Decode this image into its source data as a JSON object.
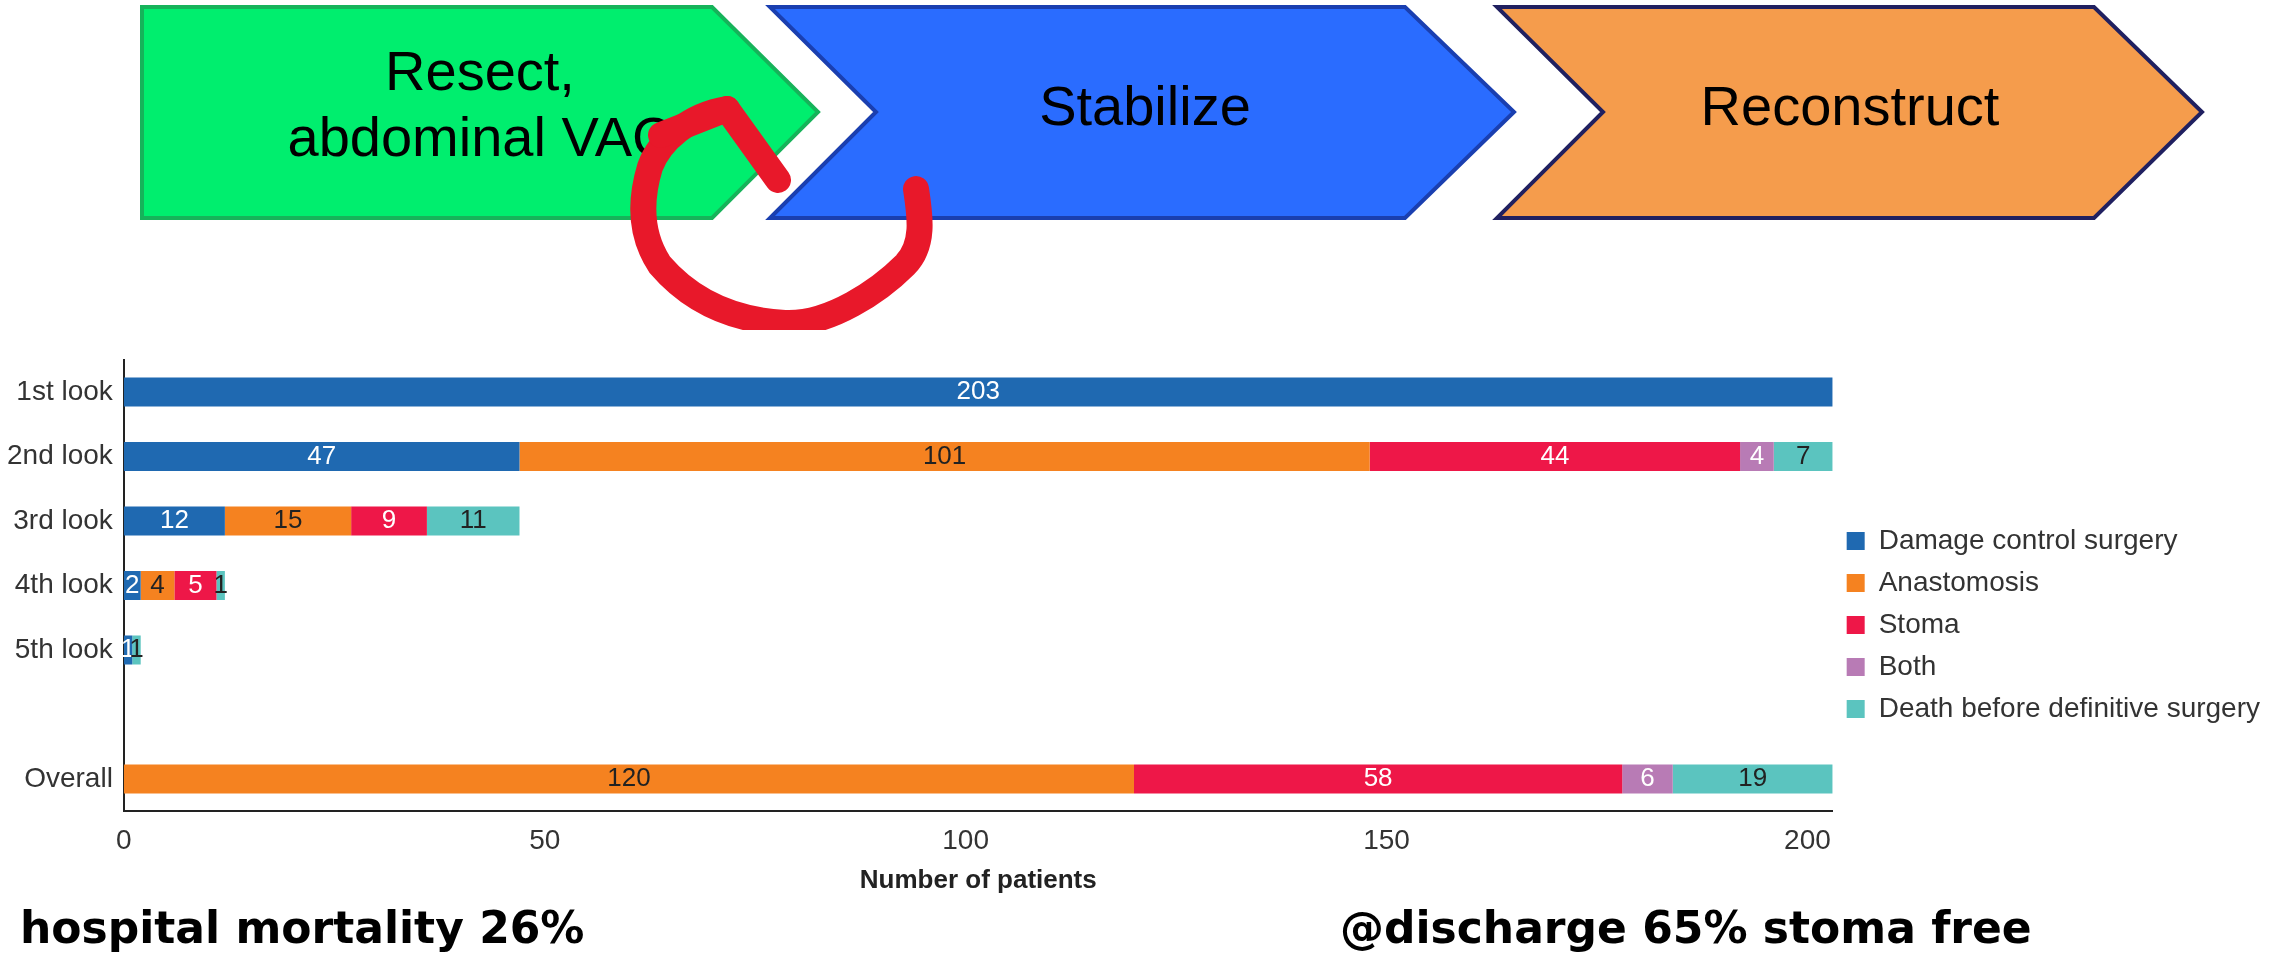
{
  "chart_data": {
    "type": "bar",
    "orientation": "horizontal",
    "stacked": true,
    "xlabel": "Number of patients",
    "categories": [
      "1st look",
      "2nd look",
      "3rd look",
      "4th look",
      "5th look",
      null,
      "Overall"
    ],
    "series": [
      {
        "name": "Damage control surgery",
        "color": "#1f69b1",
        "values": [
          203,
          47,
          12,
          2,
          1,
          null,
          null
        ]
      },
      {
        "name": "Anastomosis",
        "color": "#f58220",
        "values": [
          null,
          101,
          15,
          4,
          null,
          null,
          120
        ]
      },
      {
        "name": "Stoma",
        "color": "#ee1748",
        "values": [
          null,
          44,
          9,
          5,
          null,
          null,
          58
        ]
      },
      {
        "name": "Both",
        "color": "#b87bb5",
        "values": [
          null,
          4,
          null,
          null,
          null,
          null,
          6
        ]
      },
      {
        "name": "Death before definitive surgery",
        "color": "#5bc4bf",
        "values": [
          null,
          7,
          11,
          1,
          1,
          null,
          19
        ]
      }
    ],
    "xlim": [
      0,
      203
    ],
    "xticks": [
      0,
      50,
      100,
      150,
      200
    ],
    "grid": false,
    "legend": "right",
    "data_labels": true,
    "annotations": [
      "Resect, abdominal VAC",
      "Stabilize",
      "Reconstruct",
      "hospital mortality 26%",
      "@discharge 65% stoma free"
    ]
  }
}
